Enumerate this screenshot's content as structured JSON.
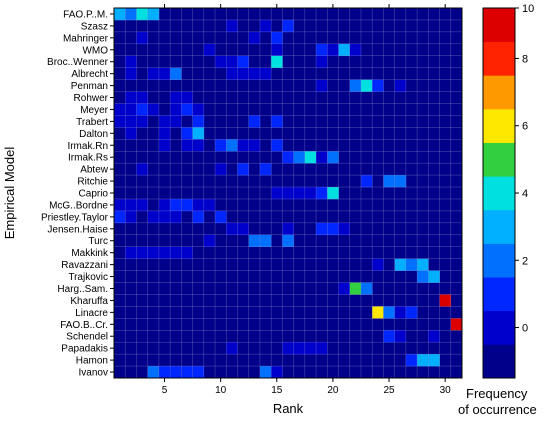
{
  "chart_data": {
    "type": "heatmap",
    "xlabel": "Rank",
    "ylabel": "Empirical Model",
    "colorbar_label_line1": "Frequency",
    "colorbar_label_line2": "of occurrence",
    "x_range": [
      1,
      31
    ],
    "x_ticks": [
      5,
      10,
      15,
      20,
      25,
      30
    ],
    "colorbar_range": [
      -1,
      10
    ],
    "colorbar_ticks": [
      0,
      2,
      4,
      6,
      8,
      10
    ],
    "models": [
      "FAO.P..M.",
      "Szasz",
      "Mahringer",
      "WMO",
      "Broc..Wenner",
      "Albrecht",
      "Penman",
      "Rohwer",
      "Meyer",
      "Trabert",
      "Dalton",
      "Irmak.Rn",
      "Irmak.Rs",
      "Abtew",
      "Ritchie",
      "Caprio",
      "McG..Bordne",
      "Priestley.Taylor",
      "Jensen.Haise",
      "Turc",
      "Makkink",
      "Ravazzani",
      "Trajkovic",
      "Harg..Sam.",
      "Kharuffa",
      "Linacre",
      "FAO.B..Cr.",
      "Schendel",
      "Papadakis",
      "Hamon",
      "Ivanov"
    ],
    "colors": {
      "-1": "#00008B",
      "0": "#0000CD",
      "1": "#0026FF",
      "2": "#0070FF",
      "3": "#00B0FF",
      "4": "#00E0E0",
      "5": "#30D040",
      "6": "#FFE800",
      "7": "#FF9900",
      "8": "#FF2200",
      "9": "#DD0000",
      "10": "#8B0000"
    },
    "grid": true,
    "cells": [
      [
        0,
        1,
        3
      ],
      [
        0,
        2,
        2
      ],
      [
        0,
        3,
        4
      ],
      [
        0,
        4,
        3
      ],
      [
        1,
        11,
        0
      ],
      [
        1,
        14,
        0
      ],
      [
        1,
        16,
        1
      ],
      [
        2,
        3,
        0
      ],
      [
        2,
        13,
        0
      ],
      [
        2,
        15,
        1
      ],
      [
        3,
        9,
        0
      ],
      [
        3,
        15,
        0
      ],
      [
        3,
        19,
        1
      ],
      [
        3,
        20,
        0
      ],
      [
        3,
        21,
        3
      ],
      [
        3,
        22,
        0
      ],
      [
        4,
        2,
        0
      ],
      [
        4,
        10,
        0
      ],
      [
        4,
        11,
        0
      ],
      [
        4,
        12,
        1
      ],
      [
        4,
        15,
        4
      ],
      [
        4,
        19,
        0
      ],
      [
        5,
        2,
        0
      ],
      [
        5,
        4,
        0
      ],
      [
        5,
        5,
        0
      ],
      [
        5,
        6,
        2
      ],
      [
        5,
        11,
        0
      ],
      [
        5,
        12,
        0
      ],
      [
        5,
        13,
        0
      ],
      [
        5,
        14,
        0
      ],
      [
        6,
        19,
        0
      ],
      [
        6,
        22,
        2
      ],
      [
        6,
        23,
        4
      ],
      [
        6,
        24,
        1
      ],
      [
        6,
        26,
        0
      ],
      [
        7,
        2,
        0
      ],
      [
        7,
        3,
        0
      ],
      [
        7,
        6,
        0
      ],
      [
        7,
        7,
        0
      ],
      [
        8,
        1,
        0
      ],
      [
        8,
        2,
        0
      ],
      [
        8,
        3,
        1
      ],
      [
        8,
        4,
        0
      ],
      [
        8,
        6,
        0
      ],
      [
        8,
        7,
        1
      ],
      [
        8,
        8,
        0
      ],
      [
        9,
        1,
        0
      ],
      [
        9,
        2,
        0
      ],
      [
        9,
        3,
        0
      ],
      [
        9,
        5,
        0
      ],
      [
        9,
        6,
        0
      ],
      [
        9,
        8,
        1
      ],
      [
        9,
        13,
        1
      ],
      [
        9,
        15,
        1
      ],
      [
        10,
        2,
        0
      ],
      [
        10,
        5,
        0
      ],
      [
        10,
        7,
        1
      ],
      [
        10,
        8,
        3
      ],
      [
        11,
        5,
        0
      ],
      [
        11,
        7,
        0
      ],
      [
        11,
        8,
        0
      ],
      [
        11,
        10,
        1
      ],
      [
        11,
        11,
        2
      ],
      [
        11,
        12,
        0
      ],
      [
        11,
        13,
        0
      ],
      [
        11,
        15,
        1
      ],
      [
        12,
        16,
        1
      ],
      [
        12,
        17,
        2
      ],
      [
        12,
        18,
        4
      ],
      [
        12,
        19,
        0
      ],
      [
        12,
        20,
        2
      ],
      [
        13,
        3,
        0
      ],
      [
        13,
        10,
        0
      ],
      [
        13,
        12,
        1
      ],
      [
        13,
        14,
        1
      ],
      [
        14,
        23,
        1
      ],
      [
        14,
        25,
        2
      ],
      [
        14,
        26,
        2
      ],
      [
        15,
        15,
        0
      ],
      [
        15,
        16,
        0
      ],
      [
        15,
        17,
        0
      ],
      [
        15,
        18,
        0
      ],
      [
        15,
        19,
        1
      ],
      [
        15,
        20,
        4
      ],
      [
        16,
        1,
        0
      ],
      [
        16,
        2,
        0
      ],
      [
        16,
        3,
        0
      ],
      [
        16,
        5,
        0
      ],
      [
        16,
        6,
        1
      ],
      [
        16,
        7,
        1
      ],
      [
        16,
        8,
        0
      ],
      [
        16,
        9,
        0
      ],
      [
        17,
        1,
        1
      ],
      [
        17,
        2,
        0
      ],
      [
        17,
        4,
        0
      ],
      [
        17,
        5,
        0
      ],
      [
        17,
        6,
        0
      ],
      [
        17,
        8,
        1
      ],
      [
        17,
        10,
        1
      ],
      [
        18,
        11,
        0
      ],
      [
        18,
        12,
        0
      ],
      [
        18,
        16,
        0
      ],
      [
        18,
        19,
        1
      ],
      [
        18,
        20,
        1
      ],
      [
        18,
        21,
        0
      ],
      [
        19,
        9,
        0
      ],
      [
        19,
        13,
        2
      ],
      [
        19,
        14,
        2
      ],
      [
        19,
        16,
        2
      ],
      [
        20,
        2,
        0
      ],
      [
        20,
        3,
        0
      ],
      [
        20,
        4,
        0
      ],
      [
        20,
        5,
        0
      ],
      [
        20,
        6,
        0
      ],
      [
        20,
        7,
        0
      ],
      [
        21,
        24,
        0
      ],
      [
        21,
        26,
        3
      ],
      [
        21,
        27,
        2
      ],
      [
        21,
        28,
        3
      ],
      [
        22,
        28,
        2
      ],
      [
        22,
        29,
        3
      ],
      [
        23,
        21,
        0
      ],
      [
        23,
        22,
        5
      ],
      [
        23,
        23,
        2
      ],
      [
        24,
        30,
        9
      ],
      [
        25,
        24,
        6
      ],
      [
        25,
        25,
        2
      ],
      [
        25,
        26,
        0
      ],
      [
        25,
        27,
        1
      ],
      [
        26,
        31,
        9
      ],
      [
        27,
        25,
        1
      ],
      [
        27,
        26,
        0
      ],
      [
        27,
        29,
        0
      ],
      [
        28,
        11,
        0
      ],
      [
        28,
        16,
        0
      ],
      [
        28,
        17,
        0
      ],
      [
        28,
        18,
        0
      ],
      [
        28,
        19,
        0
      ],
      [
        29,
        27,
        1
      ],
      [
        29,
        28,
        3
      ],
      [
        29,
        29,
        3
      ],
      [
        30,
        4,
        2
      ],
      [
        30,
        5,
        1
      ],
      [
        30,
        6,
        1
      ],
      [
        30,
        7,
        1
      ],
      [
        30,
        8,
        1
      ],
      [
        30,
        14,
        2
      ],
      [
        30,
        15,
        0
      ]
    ]
  }
}
